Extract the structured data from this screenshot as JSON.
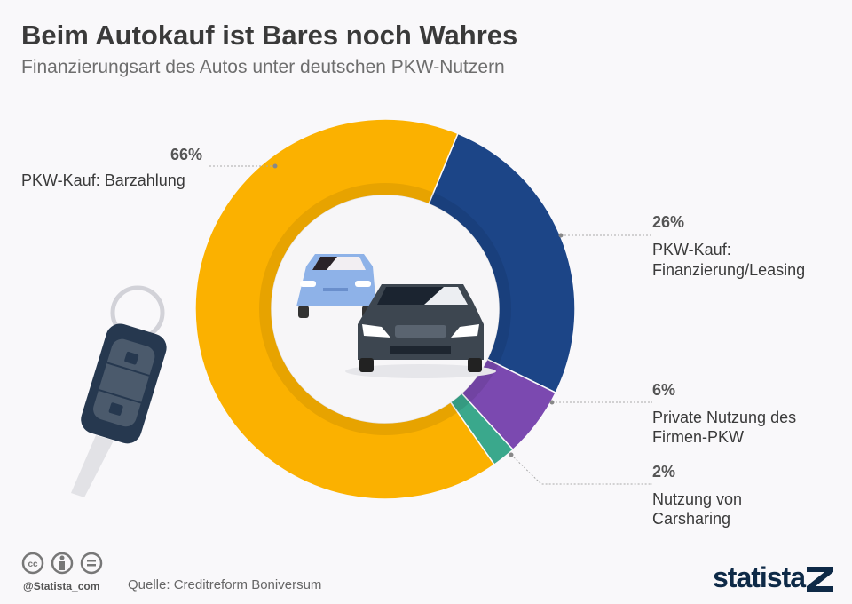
{
  "header": {
    "title": "Beim Autokauf ist Bares noch Wahres",
    "subtitle": "Finanzierungsart des Autos unter deutschen PKW-Nutzern"
  },
  "chart_data": {
    "type": "pie",
    "donut": true,
    "title": "Beim Autokauf ist Bares noch Wahres",
    "subtitle": "Finanzierungsart des Autos unter deutschen PKW-Nutzern",
    "unit": "%",
    "slices": [
      {
        "label": "PKW-Kauf: Finanzierung/Leasing",
        "value": 26,
        "display": "26%",
        "color": "#1c4587"
      },
      {
        "label": "Private Nutzung des Firmen-PKW",
        "value": 6,
        "display": "6%",
        "color": "#7b49b0"
      },
      {
        "label": "Nutzung von Carsharing",
        "value": 2,
        "display": "2%",
        "color": "#3aa88c"
      },
      {
        "label": "PKW-Kauf: Barzahlung",
        "value": 66,
        "display": "66%",
        "color": "#fbb100"
      }
    ]
  },
  "labels": {
    "bar": {
      "pct": "66%",
      "l1": "PKW-Kauf: Barzahlung"
    },
    "fin": {
      "pct": "26%",
      "l1": "PKW-Kauf:",
      "l2": "Finanzierung/Leasing"
    },
    "firm": {
      "pct": "6%",
      "l1": "Private Nutzung des",
      "l2": "Firmen-PKW"
    },
    "car": {
      "pct": "2%",
      "l1": "Nutzung von",
      "l2": "Carsharing"
    }
  },
  "footer": {
    "handle": "@Statista_com",
    "source": "Quelle: Creditreform Boniversum",
    "logo": "statista",
    "license_icons": [
      "cc-icon",
      "by-icon",
      "nd-icon"
    ]
  }
}
